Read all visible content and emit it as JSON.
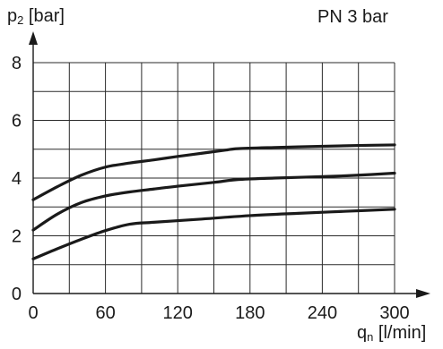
{
  "chart_data": {
    "type": "line",
    "title": "",
    "annotation": "PN 3 bar",
    "ylabel": {
      "symbol": "p",
      "subscript": "2",
      "unit": "[bar]"
    },
    "xlabel": {
      "symbol": "q",
      "subscript": "n",
      "unit": "[l/min]"
    },
    "xlim": [
      0,
      300
    ],
    "ylim": [
      0,
      8
    ],
    "xticks": [
      0,
      60,
      120,
      180,
      240,
      300
    ],
    "yticks": [
      0,
      2,
      4,
      6,
      8
    ],
    "x_grid_step": 30,
    "y_grid_step": 1,
    "grid": true,
    "series": [
      {
        "x": [
          0,
          20,
          40,
          60,
          80,
          100,
          120,
          140,
          160,
          170,
          200,
          240,
          270,
          300
        ],
        "y": [
          3.25,
          3.7,
          4.1,
          4.38,
          4.52,
          4.63,
          4.75,
          4.86,
          4.97,
          5.02,
          5.06,
          5.1,
          5.13,
          5.15
        ]
      },
      {
        "x": [
          0,
          20,
          40,
          60,
          80,
          100,
          120,
          150,
          170,
          200,
          240,
          270,
          300
        ],
        "y": [
          2.2,
          2.75,
          3.15,
          3.38,
          3.52,
          3.62,
          3.72,
          3.85,
          3.95,
          4.0,
          4.05,
          4.1,
          4.17
        ]
      },
      {
        "x": [
          0,
          20,
          40,
          60,
          80,
          100,
          140,
          180,
          220,
          260,
          300
        ],
        "y": [
          1.2,
          1.55,
          1.88,
          2.18,
          2.4,
          2.47,
          2.58,
          2.7,
          2.78,
          2.85,
          2.92
        ]
      }
    ]
  }
}
